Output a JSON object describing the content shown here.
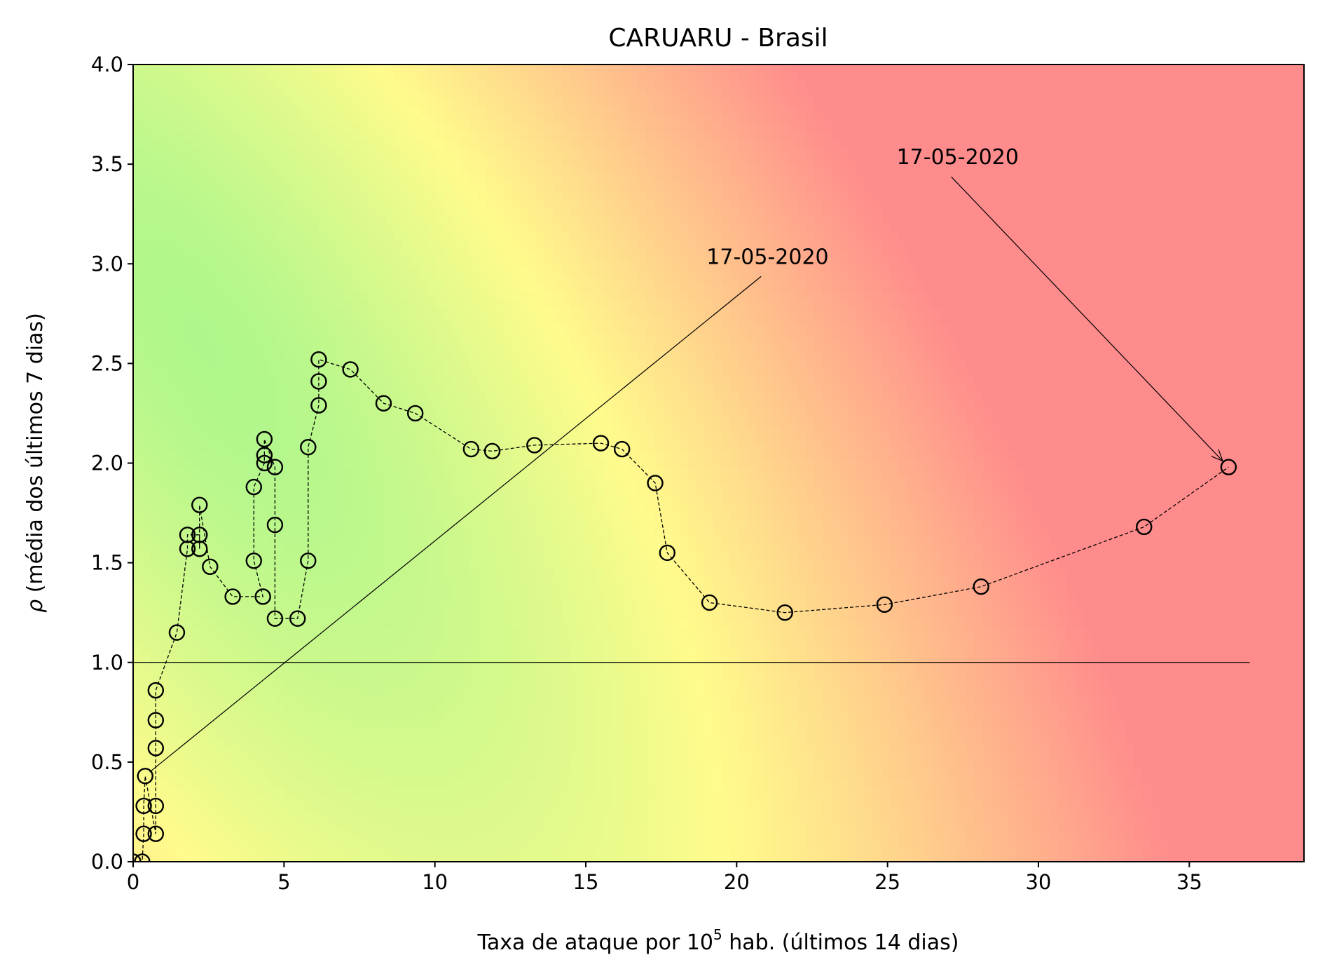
{
  "chart_data": {
    "type": "scatter",
    "title": "CARUARU - Brasil",
    "xlabel_prefix": "Taxa de ataque por 10",
    "xlabel_sup": "5",
    "xlabel_suffix": " hab. (últimos 14 dias)",
    "ylabel_symbol": "ρ",
    "ylabel_text": " (média dos últimos 7 dias)",
    "xlim": [
      0,
      38.8
    ],
    "ylim": [
      0,
      4.0
    ],
    "xticks": [
      0,
      5,
      10,
      15,
      20,
      25,
      30,
      35
    ],
    "xtick_labels": [
      "0",
      "5",
      "10",
      "15",
      "20",
      "25",
      "30",
      "35"
    ],
    "yticks": [
      0.0,
      0.5,
      1.0,
      1.5,
      2.0,
      2.5,
      3.0,
      3.5,
      4.0
    ],
    "ytick_labels": [
      "0.0",
      "0.5",
      "1.0",
      "1.5",
      "2.0",
      "2.5",
      "3.0",
      "3.5",
      "4.0"
    ],
    "reference_line": {
      "y": 1.0,
      "x_start": 0,
      "x_end": 37.0
    },
    "series": [
      {
        "marker": "open-circle",
        "line": "dashed",
        "points": [
          [
            0.0,
            0.0
          ],
          [
            0.3,
            0.0
          ],
          [
            0.35,
            0.14
          ],
          [
            0.35,
            0.28
          ],
          [
            0.4,
            0.43
          ],
          [
            0.75,
            0.14
          ],
          [
            0.75,
            0.28
          ],
          [
            0.75,
            0.57
          ],
          [
            0.75,
            0.71
          ],
          [
            0.75,
            0.86
          ],
          [
            1.45,
            1.15
          ],
          [
            1.8,
            1.57
          ],
          [
            1.8,
            1.64
          ],
          [
            2.2,
            1.64
          ],
          [
            2.2,
            1.57
          ],
          [
            2.2,
            1.79
          ],
          [
            2.55,
            1.48
          ],
          [
            3.3,
            1.33
          ],
          [
            4.3,
            1.33
          ],
          [
            4.0,
            1.51
          ],
          [
            4.0,
            1.88
          ],
          [
            4.35,
            2.0
          ],
          [
            4.35,
            2.04
          ],
          [
            4.35,
            2.12
          ],
          [
            4.7,
            1.98
          ],
          [
            4.7,
            1.69
          ],
          [
            4.7,
            1.22
          ],
          [
            5.45,
            1.22
          ],
          [
            5.8,
            1.51
          ],
          [
            5.8,
            2.08
          ],
          [
            6.15,
            2.29
          ],
          [
            6.15,
            2.41
          ],
          [
            6.15,
            2.52
          ],
          [
            7.2,
            2.47
          ],
          [
            8.3,
            2.3
          ],
          [
            9.35,
            2.25
          ],
          [
            11.2,
            2.07
          ],
          [
            11.9,
            2.06
          ],
          [
            13.3,
            2.09
          ],
          [
            15.5,
            2.1
          ],
          [
            16.2,
            2.07
          ],
          [
            17.3,
            1.9
          ],
          [
            17.7,
            1.55
          ],
          [
            19.1,
            1.3
          ],
          [
            21.6,
            1.25
          ],
          [
            24.9,
            1.29
          ],
          [
            28.1,
            1.38
          ],
          [
            33.5,
            1.68
          ],
          [
            36.3,
            1.98
          ]
        ]
      }
    ],
    "annotations": [
      {
        "text": "17-05-2020",
        "text_x": 19.0,
        "text_y": 3.0,
        "point_x": 0.55,
        "point_y": 0.45,
        "arrow": "line"
      },
      {
        "text": "17-05-2020",
        "text_x": 25.3,
        "text_y": 3.5,
        "point_x": 36.3,
        "point_y": 1.98,
        "arrow": "arrow"
      }
    ],
    "background_gradient": {
      "description": "risk colormap",
      "colors": [
        "#8CF58C",
        "#FFFB8C",
        "#FF8C8C"
      ]
    }
  }
}
